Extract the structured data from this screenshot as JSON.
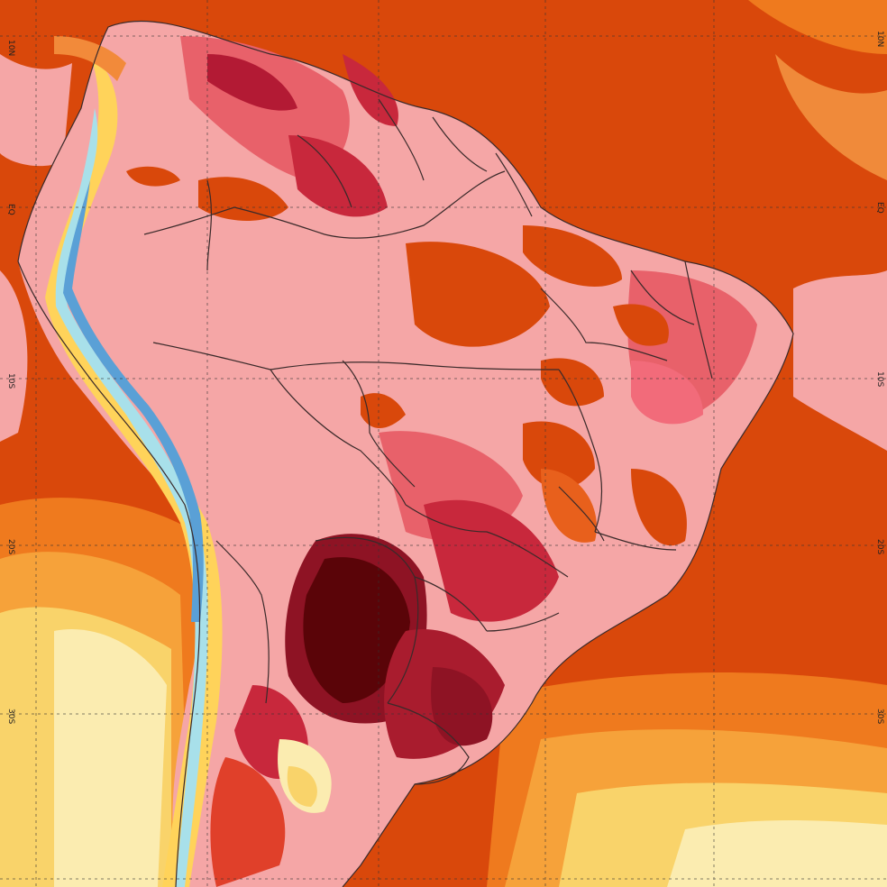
{
  "map": {
    "description_colors": {
      "ocean_warm": "#d9480b",
      "ocean_orange": "#ef7a1e",
      "ocean_amber": "#f6a23a",
      "ocean_yellow": "#f9d36a",
      "ocean_pale": "#fbecb0",
      "land_pink": "#f5a6a6",
      "land_rose": "#e8616a",
      "land_red": "#c8283c",
      "land_crimson": "#8e1324",
      "land_maroon": "#5a0408",
      "andes_blue": "#5aa0d6",
      "andes_cyan": "#a8e0ea",
      "andes_yellow": "#ffd35a"
    },
    "lat_labels": {
      "left": [
        "10N",
        "EQ",
        "10S",
        "20S",
        "30S"
      ],
      "right": [
        "10N",
        "EQ",
        "10S",
        "20S",
        "30S"
      ]
    },
    "gridlines": true,
    "legend": null
  }
}
